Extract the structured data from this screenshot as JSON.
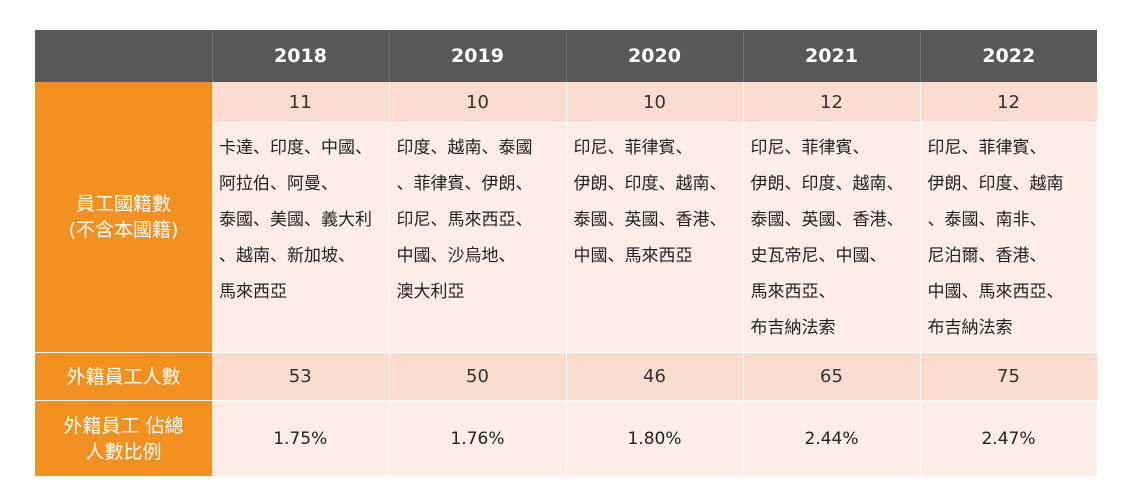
{
  "table": {
    "years": [
      "2018",
      "2019",
      "2020",
      "2021",
      "2022"
    ],
    "rows": {
      "nationality_count": {
        "label_lines": [
          "員工國籍數",
          "(不含本國籍)"
        ],
        "values": [
          "11",
          "10",
          "10",
          "12",
          "12"
        ]
      },
      "countries": {
        "cells": [
          [
            "卡達、印度、中國、",
            "阿拉伯、阿曼、",
            "泰國、美國、義大利",
            "、越南、新加坡、",
            "馬來西亞"
          ],
          [
            "印度、越南、泰國",
            "、菲律賓、伊朗、",
            "印尼、馬來西亞、",
            "中國、沙烏地、",
            "澳大利亞"
          ],
          [
            "印尼、菲律賓、",
            "伊朗、印度、越南、",
            "泰國、英國、香港、",
            "中國、馬來西亞"
          ],
          [
            "印尼、菲律賓、",
            "伊朗、印度、越南、",
            "泰國、英國、香港、",
            "史瓦帝尼、中國、",
            "馬來西亞、",
            "布吉納法索"
          ],
          [
            "印尼、菲律賓、",
            "伊朗、印度、越南",
            "、泰國、南非、",
            "尼泊爾、香港、",
            "中國、馬來西亞、",
            "布吉納法索"
          ]
        ]
      },
      "foreign_staff": {
        "label": "外籍員工人數",
        "values": [
          "53",
          "50",
          "46",
          "65",
          "75"
        ]
      },
      "foreign_ratio": {
        "label_lines": [
          "外籍員工 佔總",
          "人數比例"
        ],
        "values": [
          "1.75%",
          "1.76%",
          "1.80%",
          "2.44%",
          "2.47%"
        ]
      }
    }
  },
  "colors": {
    "header_bg": "#585858",
    "label_bg": "#f39120",
    "dark_row": "#fbdccf",
    "light_row": "#fdede6"
  }
}
